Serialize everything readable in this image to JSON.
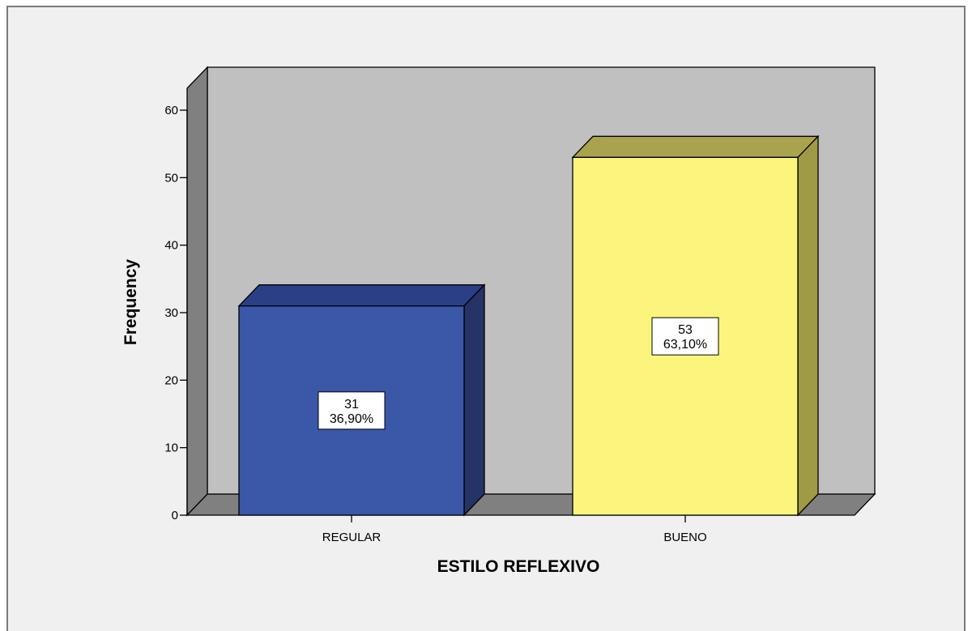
{
  "chart_data": {
    "type": "bar",
    "title": "",
    "xlabel": "ESTILO REFLEXIVO",
    "ylabel": "Frequency",
    "categories": [
      "REGULAR",
      "BUENO"
    ],
    "values": [
      31,
      53
    ],
    "data_labels": [
      {
        "count": "31",
        "percent": "36,90%"
      },
      {
        "count": "53",
        "percent": "63,10%"
      }
    ],
    "ylim": [
      0,
      60
    ],
    "yticks": [
      "0",
      "10",
      "20",
      "30",
      "40",
      "50",
      "60"
    ],
    "grid": false,
    "legend": "none",
    "style": "3d",
    "colors": {
      "bars": [
        "#3a57a8",
        "#fbf57d"
      ],
      "bar_tops": [
        "#2a3f86",
        "#a8a34c"
      ],
      "bar_sides": [
        "#253367",
        "#9e9a46"
      ],
      "backwall": "#c0c0c0",
      "floor": "#808080",
      "sidewall": "#808080",
      "background": "#f0f0f0"
    }
  }
}
